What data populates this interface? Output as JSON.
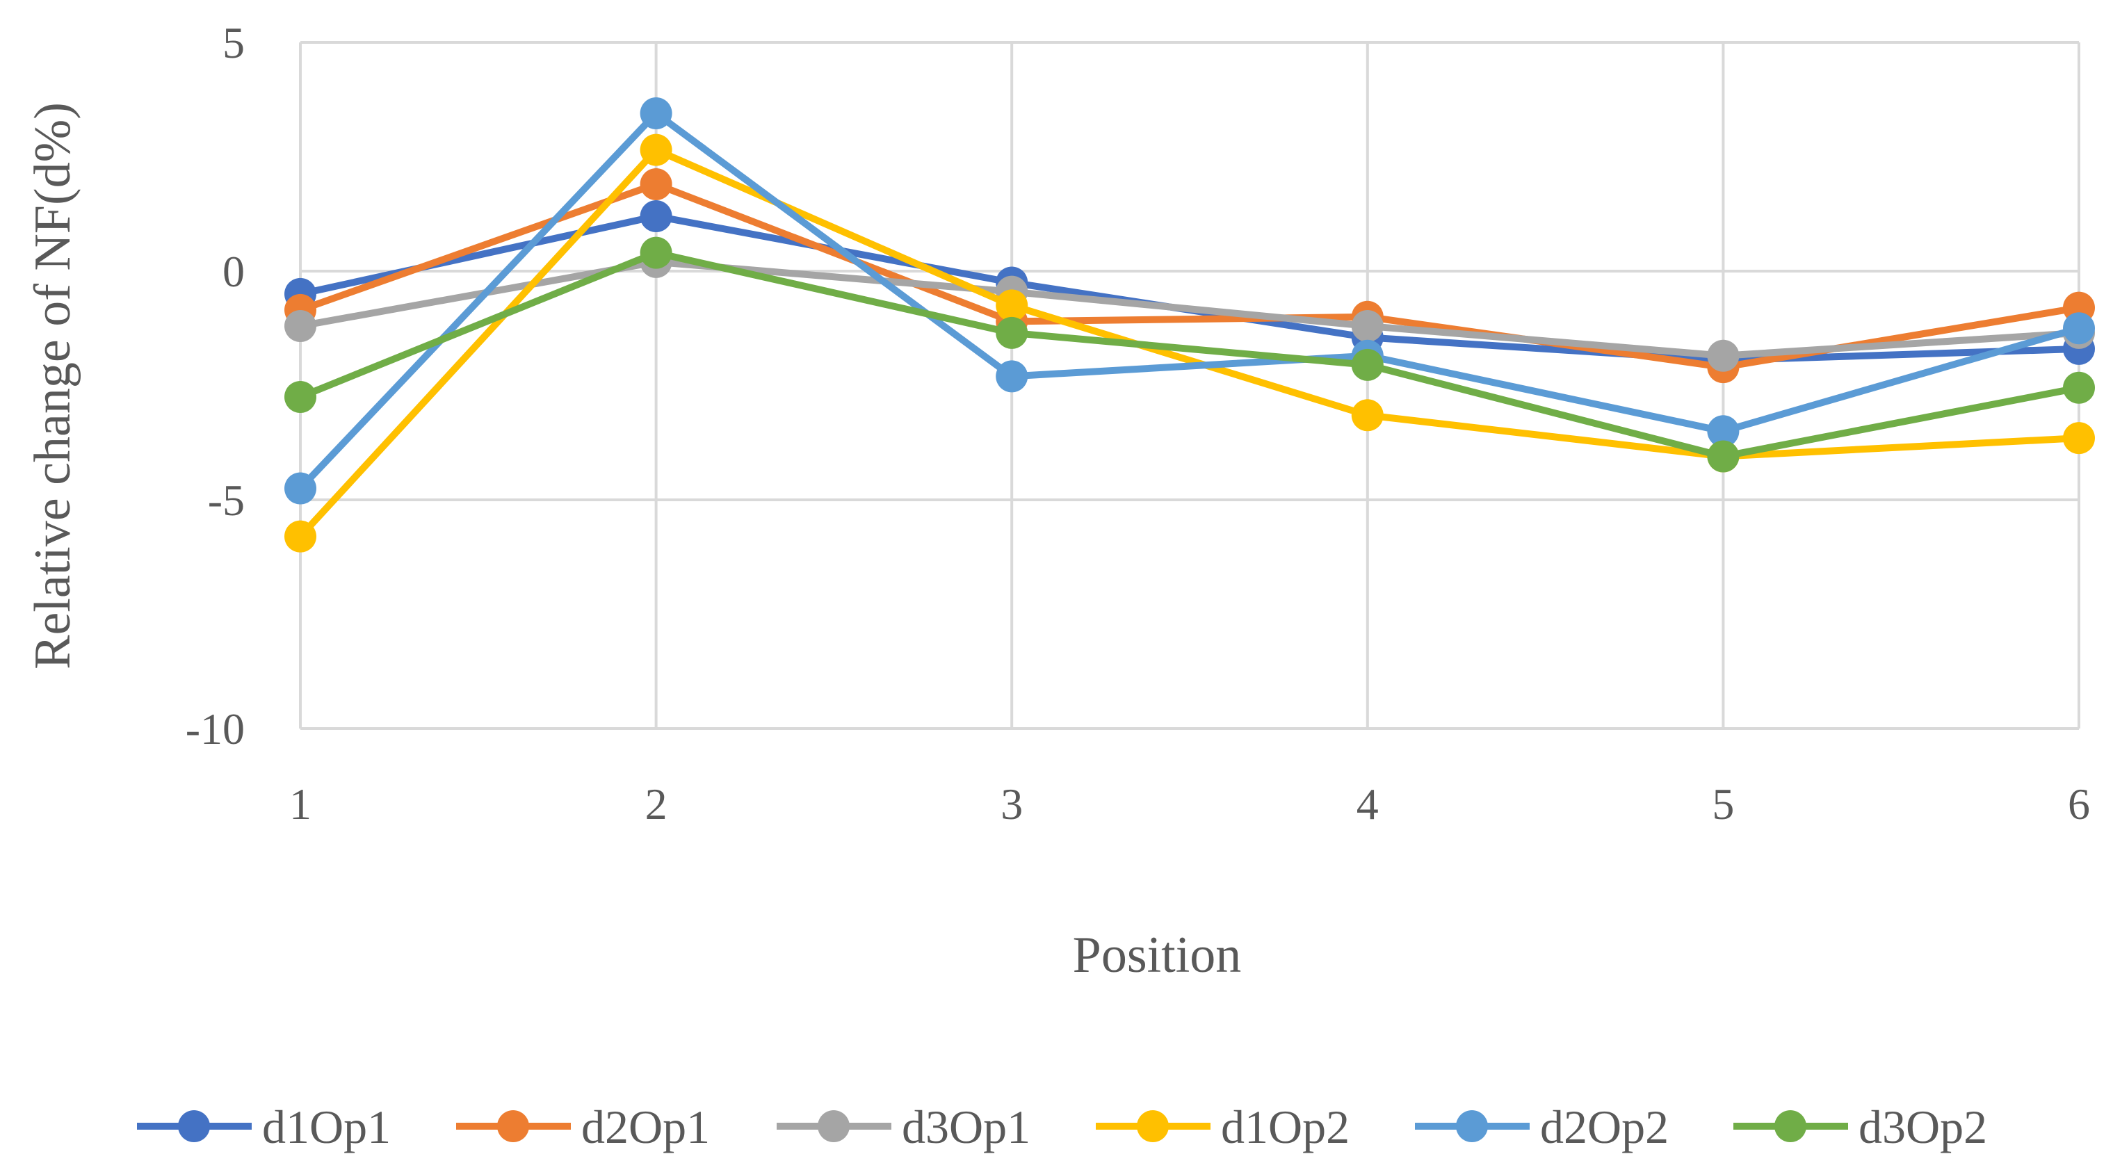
{
  "chart_data": {
    "type": "line",
    "title": "",
    "xlabel": "Position",
    "ylabel": "Relative change of NF(d%)",
    "x": [
      1,
      2,
      3,
      4,
      5,
      6
    ],
    "x_tick_labels": [
      "1",
      "2",
      "3",
      "4",
      "5",
      "6"
    ],
    "ylim": [
      -10,
      5
    ],
    "y_ticks": [
      5,
      0,
      -5,
      -10
    ],
    "y_tick_labels": [
      "5",
      "0",
      "-5",
      "-10"
    ],
    "grid": true,
    "legend_position": "bottom",
    "series": [
      {
        "name": "d1Op1",
        "color": "#4472C4",
        "values": [
          -0.5,
          1.2,
          -0.25,
          -1.45,
          -1.95,
          -1.7
        ]
      },
      {
        "name": "d2Op1",
        "color": "#ED7D31",
        "values": [
          -0.85,
          1.9,
          -1.1,
          -1.0,
          -2.1,
          -0.8
        ]
      },
      {
        "name": "d3Op1",
        "color": "#A5A5A5",
        "values": [
          -1.2,
          0.2,
          -0.45,
          -1.2,
          -1.85,
          -1.35
        ]
      },
      {
        "name": "d1Op2",
        "color": "#FFC000",
        "values": [
          -5.8,
          2.65,
          -0.75,
          -3.15,
          -4.05,
          -3.65
        ]
      },
      {
        "name": "d2Op2",
        "color": "#5B9BD5",
        "values": [
          -4.75,
          3.45,
          -2.3,
          -1.85,
          -3.5,
          -1.25
        ]
      },
      {
        "name": "d3Op2",
        "color": "#70AD47",
        "values": [
          -2.75,
          0.4,
          -1.35,
          -2.05,
          -4.05,
          -2.55
        ]
      }
    ]
  }
}
